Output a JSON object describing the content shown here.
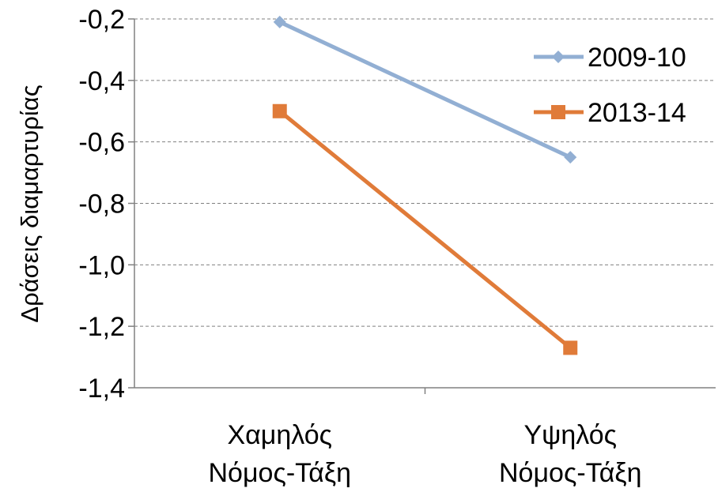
{
  "chart_data": {
    "type": "line",
    "title": "",
    "xlabel": "",
    "ylabel": "Δράσεις διαμαρτυρίας",
    "ylim": [
      -1.4,
      -0.2
    ],
    "yticks": [
      -0.2,
      -0.4,
      -0.6,
      -0.8,
      -1.0,
      -1.2,
      -1.4
    ],
    "ytick_labels": [
      "-0,2",
      "-0,4",
      "-0,6",
      "-0,8",
      "-1,0",
      "-1,2",
      "-1,4"
    ],
    "categories": [
      {
        "line1": "Χαμηλός",
        "line2": "Νόμος-Τάξη"
      },
      {
        "line1": "Υψηλός",
        "line2": "Νόμος-Τάξη"
      }
    ],
    "grid": "horizontal-dashed",
    "legend_position": "top-right",
    "series": [
      {
        "name": "2009-10",
        "values": [
          -0.21,
          -0.65
        ],
        "color": "#92afd3",
        "marker": "diamond"
      },
      {
        "name": "2013-14",
        "values": [
          -0.5,
          -1.27
        ],
        "color": "#e07b39",
        "marker": "square"
      }
    ]
  }
}
